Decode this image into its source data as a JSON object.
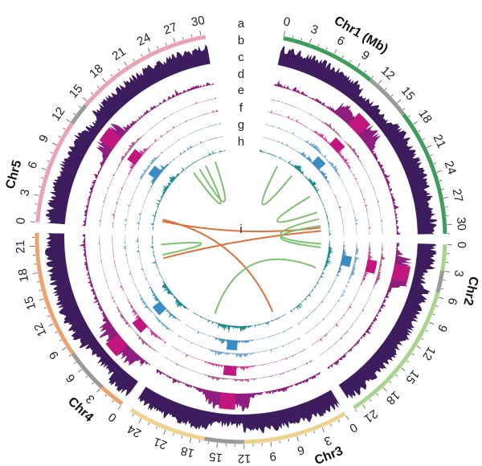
{
  "chart_data": {
    "type": "circos",
    "unit_label": "Chr1 (Mb)",
    "chromosomes": [
      {
        "name": "Chr1",
        "label": "Chr1 (Mb)",
        "length": 31,
        "color": "#3f9d5c",
        "ticks": [
          "0",
          "3",
          "6",
          "9",
          "12",
          "15",
          "18",
          "21",
          "24",
          "27",
          "30"
        ],
        "gray_region": [
          11,
          16.5
        ],
        "label_pos": 7.5
      },
      {
        "name": "Chr2",
        "label": "Chr2",
        "length": 22,
        "color": "#a9d48e",
        "ticks": [
          "0",
          "3",
          "6",
          "9",
          "12",
          "15",
          "18",
          "21"
        ],
        "gray_region": [
          3,
          5.5
        ],
        "label_pos": 4.5
      },
      {
        "name": "Chr3",
        "label": "Chr3",
        "length": 25.5,
        "color": "#efd28e",
        "ticks": [
          "0",
          "3",
          "6",
          "9",
          "12",
          "15",
          "18",
          "21",
          "24"
        ],
        "gray_region": [
          12,
          16.5
        ],
        "label_pos": 3.5
      },
      {
        "name": "Chr4",
        "label": "Chr4",
        "length": 22.5,
        "color": "#eba26c",
        "ticks": [
          "0",
          "3",
          "6",
          "9",
          "12",
          "15",
          "18",
          "21"
        ],
        "gray_region": [
          3,
          8
        ],
        "label_pos": 3
      },
      {
        "name": "Chr5",
        "label": "Chr5",
        "length": 30.5,
        "color": "#eaa3b4",
        "ticks": [
          "0",
          "3",
          "6",
          "9",
          "12",
          "15",
          "18",
          "21",
          "24",
          "27",
          "30"
        ],
        "gray_region": [
          12,
          14.5
        ],
        "label_pos": 4.5
      }
    ],
    "tracks": [
      {
        "id": "a",
        "label": "a",
        "kind": "ideogram"
      },
      {
        "id": "b",
        "label": "b",
        "kind": "histogram",
        "color": "#3d1d5e"
      },
      {
        "id": "c",
        "label": "c",
        "kind": "histogram",
        "color": "#8e1f7e",
        "block_color": "#c0167e"
      },
      {
        "id": "d",
        "label": "d",
        "kind": "histogram",
        "color": "#b0608f"
      },
      {
        "id": "e",
        "label": "e",
        "kind": "histogram",
        "color": "#d0409a",
        "block_color": "#c0167e"
      },
      {
        "id": "f",
        "label": "f",
        "kind": "histogram",
        "color": "#6fa8cc"
      },
      {
        "id": "g",
        "label": "g",
        "kind": "histogram",
        "color": "#3f8fc2",
        "block_color": "#3a8cc4"
      },
      {
        "id": "h",
        "label": "h",
        "kind": "histogram",
        "color": "#1b8a8c"
      },
      {
        "id": "i",
        "label": "i",
        "kind": "links"
      }
    ],
    "links": [
      {
        "from": [
          "Chr5",
          3
        ],
        "to": [
          "Chr1",
          28.5
        ],
        "color": "#e0703a"
      },
      {
        "from": [
          "Chr5",
          3.5
        ],
        "to": [
          "Chr3",
          3
        ],
        "color": "#e0703a"
      },
      {
        "from": [
          "Chr1",
          29.5
        ],
        "to": [
          "Chr4",
          16
        ],
        "color": "#e0703a"
      },
      {
        "from": [
          "Chr5",
          20
        ],
        "to": [
          "Chr5",
          24
        ],
        "color": "#7cc070"
      },
      {
        "from": [
          "Chr5",
          22
        ],
        "to": [
          "Chr5",
          27
        ],
        "color": "#7cc070"
      },
      {
        "from": [
          "Chr1",
          6
        ],
        "to": [
          "Chr1",
          11
        ],
        "color": "#7cc070"
      },
      {
        "from": [
          "Chr1",
          19
        ],
        "to": [
          "Chr1",
          24
        ],
        "color": "#7cc070"
      },
      {
        "from": [
          "Chr1",
          26
        ],
        "to": [
          "Chr2",
          1
        ],
        "color": "#7cc070"
      },
      {
        "from": [
          "Chr1",
          28
        ],
        "to": [
          "Chr2",
          2
        ],
        "color": "#7cc070"
      },
      {
        "from": [
          "Chr2",
          8
        ],
        "to": [
          "Chr3",
          20
        ],
        "color": "#7cc070"
      },
      {
        "from": [
          "Chr4",
          17
        ],
        "to": [
          "Chr4",
          20
        ],
        "color": "#7cc070"
      }
    ]
  }
}
